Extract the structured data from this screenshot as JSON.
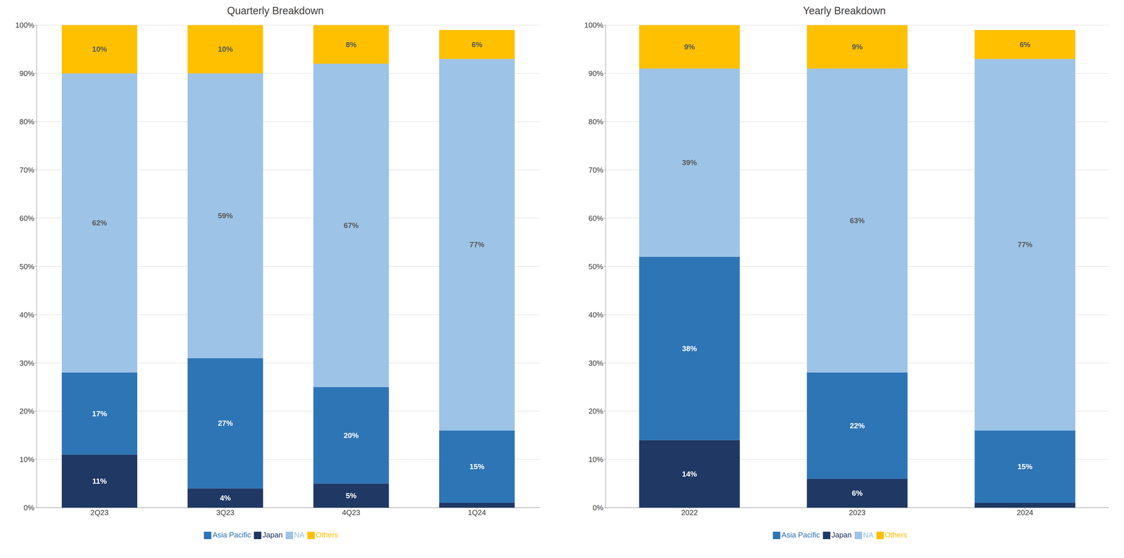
{
  "chart_data": [
    {
      "type": "bar",
      "title": "Quarterly Breakdown",
      "stacked": true,
      "grid": true,
      "legend": "bottom",
      "data_labels": true,
      "categories": [
        "2Q23",
        "3Q23",
        "4Q23",
        "1Q24"
      ],
      "ylim": [
        0,
        100
      ],
      "yticks": [
        {
          "value": 0,
          "label": "0%"
        },
        {
          "value": 10,
          "label": "10%"
        },
        {
          "value": 20,
          "label": "20%"
        },
        {
          "value": 30,
          "label": "30%"
        },
        {
          "value": 40,
          "label": "40%"
        },
        {
          "value": 50,
          "label": "50%"
        },
        {
          "value": 60,
          "label": "60%"
        },
        {
          "value": 70,
          "label": "70%"
        },
        {
          "value": 80,
          "label": "80%"
        },
        {
          "value": 90,
          "label": "90%"
        },
        {
          "value": 100,
          "label": "100%"
        }
      ],
      "series": [
        {
          "name": "Japan",
          "color": "#1f3864",
          "values": [
            11,
            4,
            5,
            1
          ],
          "value_labels": [
            "11%",
            "4%",
            "5%",
            null
          ]
        },
        {
          "name": "Asia Pacific",
          "color": "#2e75b6",
          "values": [
            17,
            27,
            20,
            15
          ],
          "value_labels": [
            "17%",
            "27%",
            "20%",
            "15%"
          ]
        },
        {
          "name": "NA",
          "color": "#9dc3e6",
          "values": [
            62,
            59,
            67,
            77
          ],
          "value_labels": [
            "62%",
            "59%",
            "67%",
            "77%"
          ]
        },
        {
          "name": "Others",
          "color": "#ffc000",
          "values": [
            10,
            10,
            8,
            6
          ],
          "value_labels": [
            "10%",
            "10%",
            "8%",
            "6%"
          ]
        }
      ]
    },
    {
      "type": "bar",
      "title": "Yearly Breakdown",
      "stacked": true,
      "grid": true,
      "legend": "bottom",
      "data_labels": true,
      "categories": [
        "2022",
        "2023",
        "2024"
      ],
      "ylim": [
        0,
        100
      ],
      "yticks": [
        {
          "value": 0,
          "label": "0%"
        },
        {
          "value": 10,
          "label": "10%"
        },
        {
          "value": 20,
          "label": "20%"
        },
        {
          "value": 30,
          "label": "30%"
        },
        {
          "value": 40,
          "label": "40%"
        },
        {
          "value": 50,
          "label": "50%"
        },
        {
          "value": 60,
          "label": "60%"
        },
        {
          "value": 70,
          "label": "70%"
        },
        {
          "value": 80,
          "label": "80%"
        },
        {
          "value": 90,
          "label": "90%"
        },
        {
          "value": 100,
          "label": "100%"
        }
      ],
      "series": [
        {
          "name": "Japan",
          "color": "#1f3864",
          "values": [
            14,
            6,
            1
          ],
          "value_labels": [
            "14%",
            "6%",
            null
          ]
        },
        {
          "name": "Asia Pacific",
          "color": "#2e75b6",
          "values": [
            38,
            22,
            15
          ],
          "value_labels": [
            "38%",
            "22%",
            "15%"
          ]
        },
        {
          "name": "NA",
          "color": "#9dc3e6",
          "values": [
            39,
            63,
            77
          ],
          "value_labels": [
            "39%",
            "63%",
            "77%"
          ]
        },
        {
          "name": "Others",
          "color": "#ffc000",
          "values": [
            9,
            9,
            6
          ],
          "value_labels": [
            "9%",
            "9%",
            "6%"
          ]
        }
      ]
    }
  ]
}
